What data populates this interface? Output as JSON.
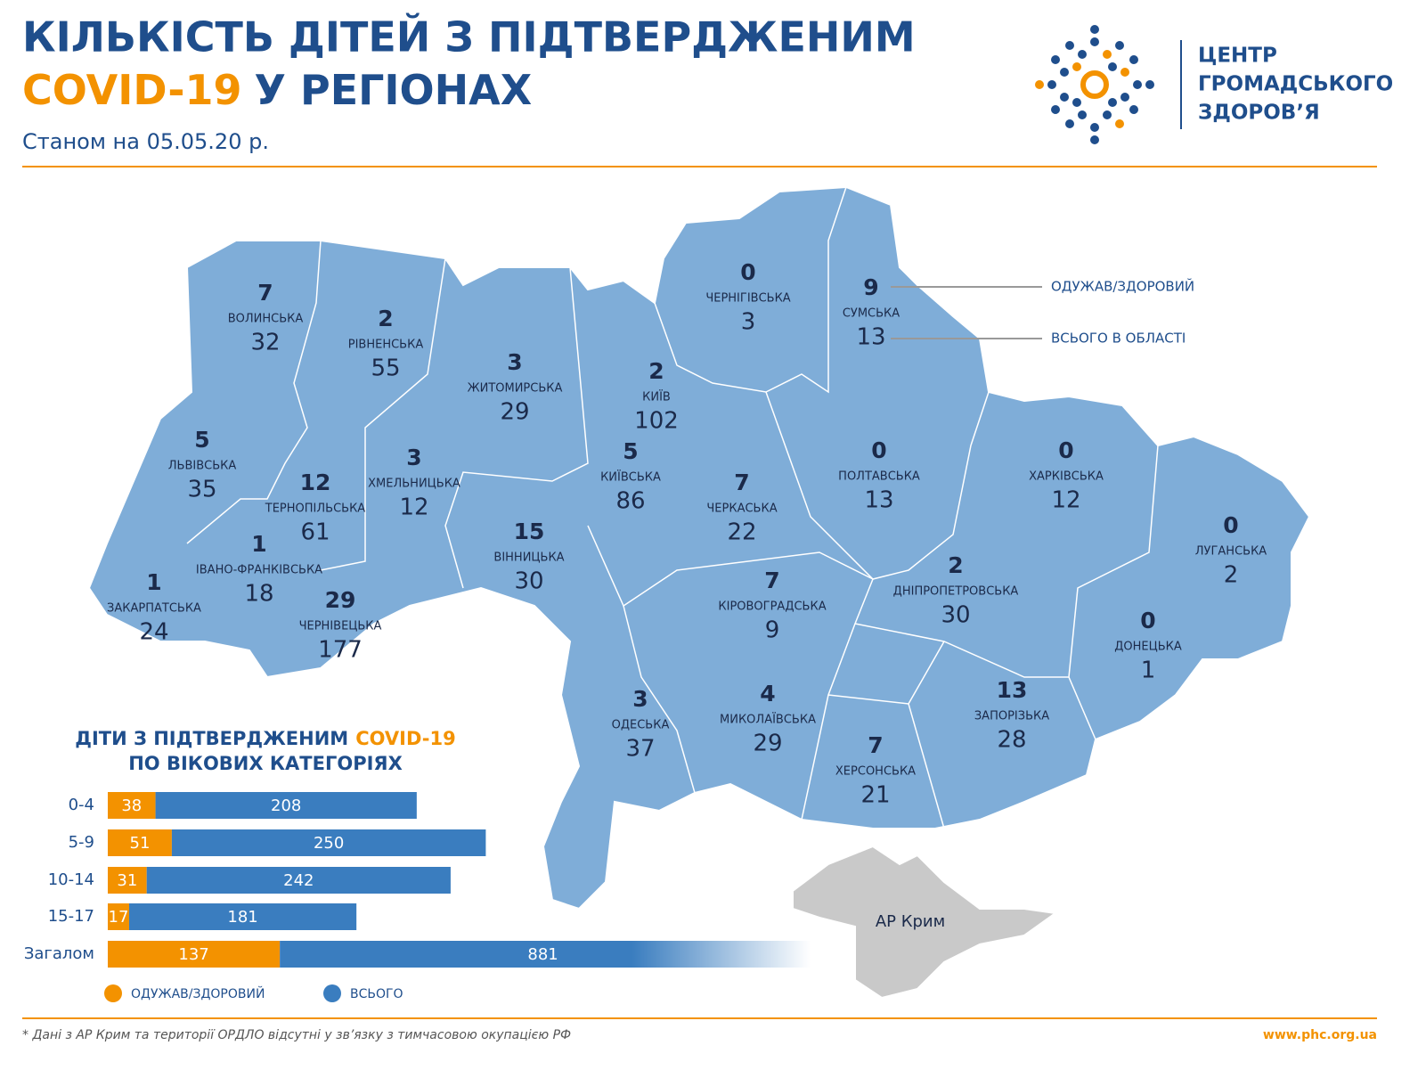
{
  "header": {
    "title_line1": "КІЛЬКІСТЬ ДІТЕЙ З ПІДТВЕРДЖЕНИМ",
    "title_highlight": "COVID-19",
    "title_rest": "У РЕГІОНАХ",
    "subtitle": "Станом на 05.05.20 р."
  },
  "logo": {
    "lines": [
      "ЦЕНТР",
      "ГРОМАДСЬКОГО",
      "ЗДОРОВ’Я"
    ]
  },
  "map": {
    "callouts": {
      "recovered": "ОДУЖАВ/ЗДОРОВИЙ",
      "total": "ВСЬОГО В ОБЛАСТІ"
    },
    "regions": [
      {
        "name": "ВОЛИНСЬКА",
        "recovered": 7,
        "total": 32
      },
      {
        "name": "РІВНЕНСЬКА",
        "recovered": 2,
        "total": 55
      },
      {
        "name": "ЖИТОМИРСЬКА",
        "recovered": 3,
        "total": 29
      },
      {
        "name": "КИЇВ",
        "recovered": 2,
        "total": 102
      },
      {
        "name": "ЧЕРНІГІВСЬКА",
        "recovered": 0,
        "total": 3
      },
      {
        "name": "СУМСЬКА",
        "recovered": 9,
        "total": 13
      },
      {
        "name": "ЛЬВІВСЬКА",
        "recovered": 5,
        "total": 35
      },
      {
        "name": "ТЕРНОПІЛЬСЬКА",
        "recovered": 12,
        "total": 61
      },
      {
        "name": "ХМЕЛЬНИЦЬКА",
        "recovered": 3,
        "total": 12
      },
      {
        "name": "КИЇВСЬКА",
        "recovered": 5,
        "total": 86
      },
      {
        "name": "ЧЕРКАСЬКА",
        "recovered": 7,
        "total": 22
      },
      {
        "name": "ПОЛТАВСЬКА",
        "recovered": 0,
        "total": 13
      },
      {
        "name": "ХАРКІВСЬКА",
        "recovered": 0,
        "total": 12
      },
      {
        "name": "ЛУГАНСЬКА",
        "recovered": 0,
        "total": 2
      },
      {
        "name": "ІВАНО-ФРАНКІВСЬКА",
        "recovered": 1,
        "total": 18
      },
      {
        "name": "ЗАКАРПАТСЬКА",
        "recovered": 1,
        "total": 24
      },
      {
        "name": "ЧЕРНІВЕЦЬКА",
        "recovered": 29,
        "total": 177
      },
      {
        "name": "ВІННИЦЬКА",
        "recovered": 15,
        "total": 30
      },
      {
        "name": "КІРОВОГРАДСЬКА",
        "recovered": 7,
        "total": 9
      },
      {
        "name": "ДНІПРОПЕТРОВСЬКА",
        "recovered": 2,
        "total": 30
      },
      {
        "name": "ДОНЕЦЬКА",
        "recovered": 0,
        "total": 1
      },
      {
        "name": "ОДЕСЬКА",
        "recovered": 3,
        "total": 37
      },
      {
        "name": "МИКОЛАЇВСЬКА",
        "recovered": 4,
        "total": 29
      },
      {
        "name": "ХЕРСОНСЬКА",
        "recovered": 7,
        "total": 21
      },
      {
        "name": "ЗАПОРІЗЬКА",
        "recovered": 13,
        "total": 28
      }
    ],
    "crimea": "АР Крим"
  },
  "chart_data": {
    "type": "bar",
    "stacked": true,
    "orientation": "horizontal",
    "title_line1": "ДІТИ З ПІДТВЕРДЖЕНИМ",
    "title_highlight": "COVID-19",
    "title_line2": "ПО ВІКОВИХ КАТЕГОРІЯХ",
    "categories": [
      "0-4",
      "5-9",
      "10-14",
      "15-17",
      "Загалом"
    ],
    "series": [
      {
        "name": "ОДУЖАВ/ЗДОРОВИЙ",
        "color": "#f39200",
        "values": [
          38,
          51,
          31,
          17,
          137
        ]
      },
      {
        "name": "ВСЬОГО",
        "color": "#3a7dbf",
        "values": [
          208,
          250,
          242,
          181,
          881
        ]
      }
    ]
  },
  "footer": {
    "note": "* Дані з АР Крим та території ОРДЛО відсутні у зв’язку з тимчасовою окупацією РФ",
    "url": "www.phc.org.ua"
  }
}
